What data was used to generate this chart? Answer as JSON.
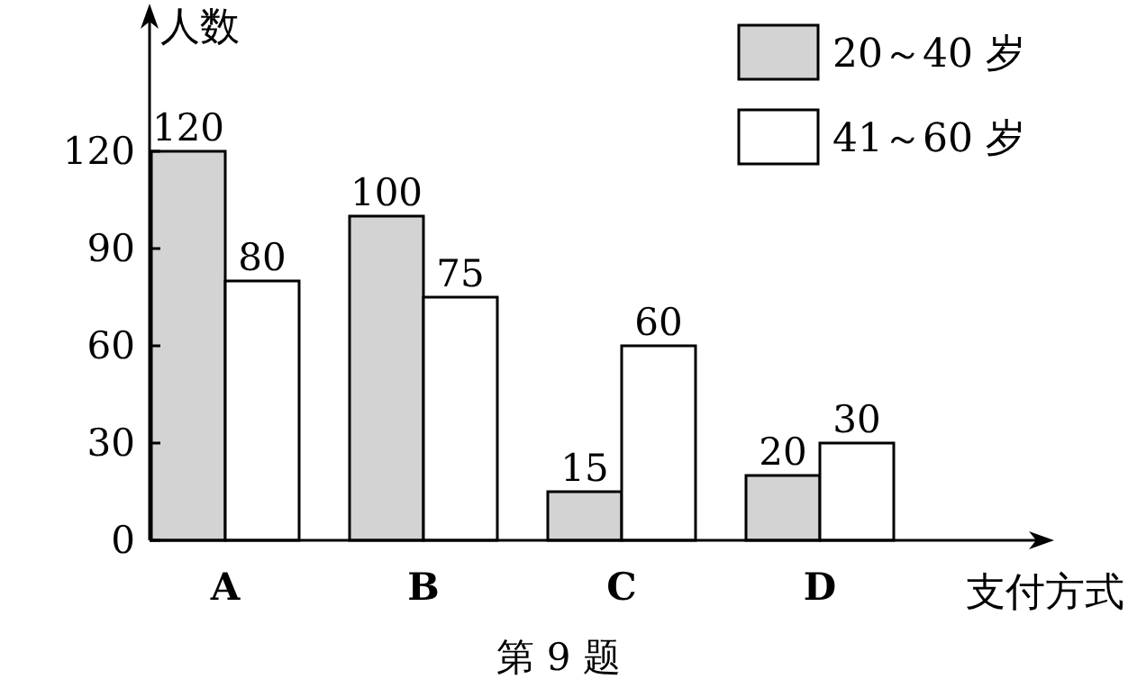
{
  "chart_data": {
    "type": "bar",
    "xlabel": "支付方式",
    "ylabel": "人数",
    "categories": [
      "A",
      "B",
      "C",
      "D"
    ],
    "series": [
      {
        "name": "20～40 岁",
        "color": "#d3d3d3",
        "values": [
          120,
          100,
          15,
          20
        ]
      },
      {
        "name": "41～60 岁",
        "color": "#ffffff",
        "values": [
          80,
          75,
          60,
          30
        ]
      }
    ],
    "ylim": [
      0,
      160
    ],
    "yticks": [
      0,
      30,
      60,
      90,
      120
    ],
    "data_labels": true,
    "legend": "top right",
    "grid": false,
    "annotations": [
      "第 9 题"
    ]
  }
}
